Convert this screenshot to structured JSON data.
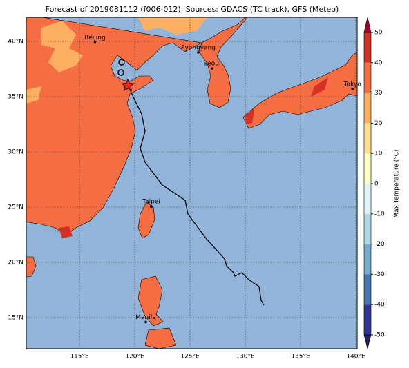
{
  "title": "Forecast of 2019081112 (f006-012), Sources: GDACS (TC track), GFS (Meteo)",
  "map": {
    "lon_ticks": [
      {
        "value": 115,
        "label": "115°E"
      },
      {
        "value": 120,
        "label": "120°E"
      },
      {
        "value": 125,
        "label": "125°E"
      },
      {
        "value": 130,
        "label": "130°E"
      },
      {
        "value": 135,
        "label": "135°E"
      },
      {
        "value": 140,
        "label": "140°E"
      }
    ],
    "lat_ticks": [
      {
        "value": 15,
        "label": "15°N"
      },
      {
        "value": 20,
        "label": "20°N"
      },
      {
        "value": 25,
        "label": "25°N"
      },
      {
        "value": 30,
        "label": "30°N"
      },
      {
        "value": 35,
        "label": "35°N"
      },
      {
        "value": 40,
        "label": "40°N"
      }
    ],
    "cities": [
      {
        "name": "Beijing",
        "lon": 116.4,
        "lat": 39.9
      },
      {
        "name": "Pyongyang",
        "lon": 125.75,
        "lat": 39.0
      },
      {
        "name": "Seoul",
        "lon": 127.0,
        "lat": 37.55
      },
      {
        "name": "Tokyo",
        "lon": 139.7,
        "lat": 35.7
      },
      {
        "name": "Taipei",
        "lon": 121.5,
        "lat": 25.05
      },
      {
        "name": "Manila",
        "lon": 121.0,
        "lat": 14.6
      }
    ]
  },
  "colorbar": {
    "label": "Max Temperature (°C)",
    "ticks": [
      -50,
      -40,
      -30,
      -20,
      -10,
      0,
      10,
      20,
      30,
      40,
      50
    ],
    "colors": [
      "#313695",
      "#4575b4",
      "#74add1",
      "#abd9e9",
      "#e0f3f8",
      "#ffffbf",
      "#fee090",
      "#fdae61",
      "#f46d43",
      "#d73027"
    ],
    "under_color": "#23215f",
    "over_color": "#a50026"
  }
}
